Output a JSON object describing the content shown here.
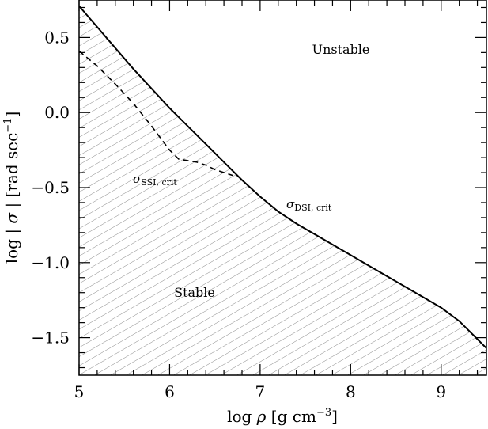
{
  "chart_data": {
    "type": "line",
    "xlabel": {
      "prefix": "log ",
      "symbol": "ρ",
      "units": "  [g  cm",
      "exp": "−3",
      "close": "]"
    },
    "ylabel": {
      "prefix": "log | ",
      "symbol": "σ",
      "mid": " |  [rad sec",
      "exp": "−1",
      "close": "]"
    },
    "xlim": [
      5,
      9.5
    ],
    "ylim": [
      -1.75,
      0.75
    ],
    "xticks": [
      "5",
      "6",
      "7",
      "8",
      "9"
    ],
    "xtick_values": [
      5,
      6,
      7,
      8,
      9
    ],
    "yticks": [
      "0.5",
      "0.0",
      "−0.5",
      "−1.0",
      "−1.5"
    ],
    "ytick_values": [
      0.5,
      0.0,
      -0.5,
      -1.0,
      -1.5
    ],
    "series": [
      {
        "name": "σDSI, crit",
        "style": "solid",
        "x": [
          5.0,
          5.2,
          5.4,
          5.6,
          5.8,
          6.0,
          6.2,
          6.4,
          6.6,
          6.8,
          7.0,
          7.2,
          7.4,
          7.6,
          7.8,
          8.0,
          8.2,
          8.4,
          8.6,
          8.8,
          9.0,
          9.2,
          9.4,
          9.5
        ],
        "y": [
          0.71,
          0.57,
          0.43,
          0.29,
          0.16,
          0.03,
          -0.09,
          -0.21,
          -0.33,
          -0.45,
          -0.56,
          -0.66,
          -0.74,
          -0.81,
          -0.88,
          -0.95,
          -1.02,
          -1.09,
          -1.16,
          -1.23,
          -1.3,
          -1.39,
          -1.51,
          -1.57
        ]
      },
      {
        "name": "σSSI, crit",
        "style": "dashed",
        "x": [
          5.0,
          5.2,
          5.4,
          5.6,
          5.8,
          6.0,
          6.1,
          6.2,
          6.3,
          6.4,
          6.5,
          6.6,
          6.7
        ],
        "y": [
          0.41,
          0.31,
          0.19,
          0.06,
          -0.09,
          -0.25,
          -0.31,
          -0.32,
          -0.33,
          -0.35,
          -0.38,
          -0.4,
          -0.42
        ]
      }
    ],
    "annotations": {
      "unstable": "Unstable",
      "stable": "Stable",
      "ssi": {
        "sigma": "σ",
        "sub": "SSI, crit"
      },
      "dsi": {
        "sigma": "σ",
        "sub": "DSI, crit"
      }
    },
    "stable_region": "hatched below σDSI, crit",
    "grid": false,
    "legend": "none"
  }
}
